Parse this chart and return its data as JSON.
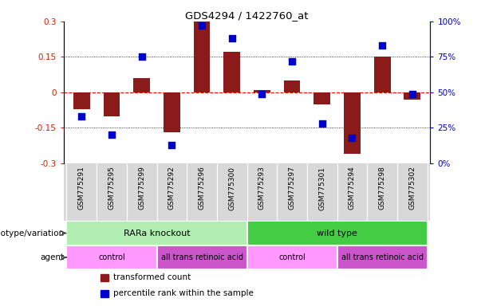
{
  "title": "GDS4294 / 1422760_at",
  "samples": [
    "GSM775291",
    "GSM775295",
    "GSM775299",
    "GSM775292",
    "GSM775296",
    "GSM775300",
    "GSM775293",
    "GSM775297",
    "GSM775301",
    "GSM775294",
    "GSM775298",
    "GSM775302"
  ],
  "transformed_count": [
    -0.07,
    -0.1,
    0.06,
    -0.17,
    0.3,
    0.17,
    0.01,
    0.05,
    -0.05,
    -0.26,
    0.15,
    -0.03
  ],
  "percentile_rank": [
    33,
    20,
    75,
    13,
    97,
    88,
    49,
    72,
    28,
    18,
    83,
    49
  ],
  "ylim_left": [
    -0.3,
    0.3
  ],
  "ylim_right": [
    0,
    100
  ],
  "yticks_left": [
    -0.3,
    -0.15,
    0,
    0.15,
    0.3
  ],
  "yticks_right": [
    0,
    25,
    50,
    75,
    100
  ],
  "dotted_lines": [
    -0.15,
    0.15
  ],
  "bar_color": "#8B1A1A",
  "dot_color": "#0000CD",
  "dot_size": 30,
  "genotype_groups": [
    {
      "label": "RARa knockout",
      "start": 0,
      "end": 6,
      "color": "#B2EEB2"
    },
    {
      "label": "wild type",
      "start": 6,
      "end": 12,
      "color": "#44CC44"
    }
  ],
  "agent_groups": [
    {
      "label": "control",
      "start": 0,
      "end": 3,
      "color": "#FF99FF"
    },
    {
      "label": "all trans retinoic acid",
      "start": 3,
      "end": 6,
      "color": "#CC55CC"
    },
    {
      "label": "control",
      "start": 6,
      "end": 9,
      "color": "#FF99FF"
    },
    {
      "label": "all trans retinoic acid",
      "start": 9,
      "end": 12,
      "color": "#CC55CC"
    }
  ],
  "legend_items": [
    {
      "label": "transformed count",
      "color": "#8B1A1A"
    },
    {
      "label": "percentile rank within the sample",
      "color": "#0000CD"
    }
  ],
  "row_label_genotype": "genotype/variation",
  "row_label_agent": "agent",
  "tick_label_bg": "#D8D8D8",
  "left_axis_color": "#CC2200",
  "right_axis_color": "#0000CD"
}
